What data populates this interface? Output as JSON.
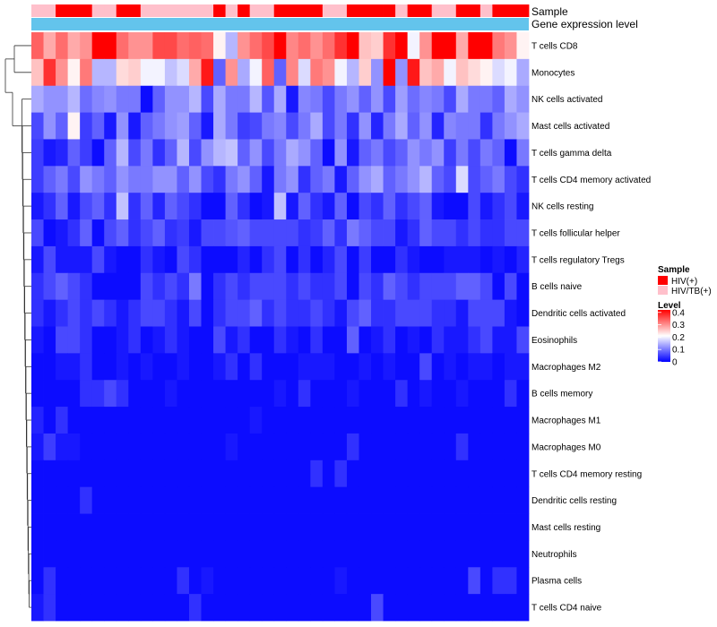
{
  "chart_data": {
    "type": "heatmap",
    "title": "",
    "annotation_tracks": [
      {
        "name": "Sample",
        "type": "categorical"
      },
      {
        "name": "Gene expression level",
        "type": "continuous"
      }
    ],
    "sample_groups": [
      1,
      1,
      0,
      0,
      0,
      1,
      1,
      0,
      0,
      1,
      1,
      1,
      1,
      1,
      1,
      0,
      1,
      0,
      1,
      1,
      0,
      0,
      0,
      0,
      1,
      1,
      0,
      0,
      0,
      0,
      1,
      0,
      0,
      1,
      1,
      0,
      0,
      1,
      0,
      0,
      0
    ],
    "rows": [
      "T cells CD8",
      "Monocytes",
      "NK cells activated",
      "Mast cells activated",
      "T cells gamma delta",
      "T cells CD4 memory activated",
      "NK cells resting",
      "T cells follicular helper",
      "T cells regulatory  Tregs",
      "B cells naive",
      "Dendritic cells activated",
      "Eosinophils",
      "Macrophages M2",
      "B cells memory",
      "Macrophages M1",
      "Macrophages M0",
      "T cells CD4 memory resting",
      "Dendritic cells resting",
      "Mast cells resting",
      "Neutrophils",
      "Plasma cells",
      "T cells CD4 naive"
    ],
    "values": [
      [
        0.34,
        0.28,
        0.33,
        0.28,
        0.3,
        0.42,
        0.42,
        0.33,
        0.3,
        0.3,
        0.36,
        0.36,
        0.33,
        0.34,
        0.33,
        0.22,
        0.15,
        0.3,
        0.33,
        0.36,
        0.42,
        0.31,
        0.33,
        0.3,
        0.33,
        0.38,
        0.42,
        0.26,
        0.25,
        0.38,
        0.42,
        0.2,
        0.3,
        0.42,
        0.42,
        0.28,
        0.42,
        0.42,
        0.32,
        0.3,
        0.22
      ],
      [
        0.26,
        0.38,
        0.3,
        0.22,
        0.32,
        0.15,
        0.15,
        0.24,
        0.25,
        0.2,
        0.2,
        0.16,
        0.18,
        0.28,
        0.4,
        0.08,
        0.3,
        0.14,
        0.2,
        0.34,
        0.08,
        0.31,
        0.18,
        0.32,
        0.3,
        0.2,
        0.15,
        0.25,
        0.12,
        0.42,
        0.12,
        0.4,
        0.26,
        0.28,
        0.2,
        0.26,
        0.24,
        0.22,
        0.18,
        0.2,
        0.14
      ],
      [
        0.14,
        0.12,
        0.12,
        0.15,
        0.09,
        0.11,
        0.12,
        0.1,
        0.1,
        0.01,
        0.08,
        0.12,
        0.12,
        0.15,
        0.06,
        0.14,
        0.1,
        0.1,
        0.15,
        0.07,
        0.14,
        0.02,
        0.11,
        0.1,
        0.06,
        0.1,
        0.12,
        0.08,
        0.12,
        0.06,
        0.13,
        0.09,
        0.11,
        0.1,
        0.06,
        0.14,
        0.1,
        0.1,
        0.08,
        0.14,
        0.12
      ],
      [
        0.06,
        0.12,
        0.08,
        0.22,
        0.05,
        0.08,
        0.02,
        0.12,
        0.02,
        0.08,
        0.1,
        0.12,
        0.13,
        0.08,
        0.02,
        0.14,
        0.1,
        0.05,
        0.06,
        0.1,
        0.11,
        0.06,
        0.1,
        0.14,
        0.06,
        0.1,
        0.04,
        0.12,
        0.03,
        0.1,
        0.14,
        0.08,
        0.12,
        0.03,
        0.11,
        0.1,
        0.1,
        0.04,
        0.1,
        0.12,
        0.14
      ],
      [
        0.05,
        0.02,
        0.03,
        0.08,
        0.05,
        0.01,
        0.08,
        0.15,
        0.06,
        0.1,
        0.04,
        0.08,
        0.15,
        0.06,
        0.12,
        0.15,
        0.16,
        0.08,
        0.12,
        0.06,
        0.1,
        0.14,
        0.12,
        0.08,
        0.01,
        0.12,
        0.02,
        0.08,
        0.1,
        0.06,
        0.08,
        0.12,
        0.1,
        0.12,
        0.05,
        0.1,
        0.06,
        0.1,
        0.08,
        0.01,
        0.1
      ],
      [
        0.05,
        0.08,
        0.1,
        0.06,
        0.12,
        0.1,
        0.08,
        0.12,
        0.1,
        0.1,
        0.12,
        0.12,
        0.08,
        0.12,
        0.06,
        0.04,
        0.1,
        0.12,
        0.08,
        0.02,
        0.1,
        0.12,
        0.04,
        0.08,
        0.1,
        0.02,
        0.08,
        0.12,
        0.14,
        0.08,
        0.1,
        0.12,
        0.15,
        0.08,
        0.06,
        0.18,
        0.06,
        0.08,
        0.1,
        0.06,
        0.04
      ],
      [
        0.02,
        0.04,
        0.08,
        0.02,
        0.06,
        0.08,
        0.04,
        0.16,
        0.04,
        0.08,
        0.03,
        0.08,
        0.06,
        0.04,
        0.01,
        0.01,
        0.08,
        0.04,
        0.01,
        0.02,
        0.16,
        0.02,
        0.08,
        0.04,
        0.02,
        0.08,
        0.01,
        0.06,
        0.04,
        0.08,
        0.04,
        0.06,
        0.08,
        0.02,
        0.01,
        0.01,
        0.06,
        0.02,
        0.04,
        0.06,
        0.02
      ],
      [
        0.06,
        0.01,
        0.02,
        0.04,
        0.08,
        0.01,
        0.06,
        0.08,
        0.04,
        0.06,
        0.08,
        0.04,
        0.05,
        0.02,
        0.06,
        0.06,
        0.07,
        0.08,
        0.06,
        0.06,
        0.06,
        0.06,
        0.04,
        0.05,
        0.08,
        0.04,
        0.1,
        0.08,
        0.06,
        0.06,
        0.02,
        0.04,
        0.08,
        0.06,
        0.06,
        0.04,
        0.06,
        0.04,
        0.04,
        0.06,
        0.06
      ],
      [
        0.02,
        0.06,
        0.02,
        0.02,
        0.02,
        0.06,
        0.02,
        0.01,
        0.01,
        0.04,
        0.02,
        0.01,
        0.06,
        0.04,
        0.01,
        0.01,
        0.01,
        0.03,
        0.01,
        0.04,
        0.06,
        0.01,
        0.04,
        0.01,
        0.03,
        0.06,
        0.01,
        0.05,
        0.01,
        0.01,
        0.04,
        0.02,
        0.01,
        0.01,
        0.02,
        0.02,
        0.02,
        0.01,
        0.02,
        0.01,
        0.03
      ],
      [
        0.04,
        0.06,
        0.08,
        0.06,
        0.04,
        0.01,
        0.01,
        0.01,
        0.01,
        0.06,
        0.04,
        0.06,
        0.04,
        0.1,
        0.01,
        0.04,
        0.06,
        0.04,
        0.06,
        0.06,
        0.06,
        0.04,
        0.06,
        0.04,
        0.04,
        0.06,
        0.01,
        0.06,
        0.04,
        0.08,
        0.06,
        0.04,
        0.06,
        0.06,
        0.06,
        0.08,
        0.08,
        0.06,
        0.01,
        0.06,
        0.01
      ],
      [
        0.04,
        0.02,
        0.04,
        0.06,
        0.04,
        0.06,
        0.04,
        0.02,
        0.04,
        0.06,
        0.06,
        0.04,
        0.02,
        0.06,
        0.01,
        0.04,
        0.06,
        0.06,
        0.08,
        0.04,
        0.06,
        0.04,
        0.04,
        0.06,
        0.04,
        0.02,
        0.06,
        0.08,
        0.04,
        0.04,
        0.06,
        0.06,
        0.06,
        0.04,
        0.04,
        0.02,
        0.06,
        0.06,
        0.06,
        0.02,
        0.01
      ],
      [
        0.02,
        0.01,
        0.06,
        0.06,
        0.04,
        0.01,
        0.01,
        0.02,
        0.04,
        0.01,
        0.02,
        0.04,
        0.02,
        0.01,
        0.01,
        0.06,
        0.02,
        0.04,
        0.01,
        0.01,
        0.04,
        0.02,
        0.01,
        0.04,
        0.01,
        0.01,
        0.08,
        0.01,
        0.02,
        0.04,
        0.01,
        0.02,
        0.01,
        0.04,
        0.02,
        0.02,
        0.04,
        0.06,
        0.02,
        0.02,
        0.06
      ],
      [
        0.01,
        0.01,
        0.02,
        0.02,
        0.04,
        0.01,
        0.01,
        0.02,
        0.01,
        0.02,
        0.01,
        0.01,
        0.02,
        0.01,
        0.01,
        0.02,
        0.04,
        0.01,
        0.04,
        0.01,
        0.01,
        0.01,
        0.02,
        0.02,
        0.02,
        0.01,
        0.01,
        0.02,
        0.01,
        0.02,
        0.01,
        0.01,
        0.06,
        0.01,
        0.02,
        0.01,
        0.02,
        0.02,
        0.01,
        0.02,
        0.02
      ],
      [
        0.01,
        0.01,
        0.01,
        0.01,
        0.04,
        0.04,
        0.06,
        0.04,
        0.01,
        0.01,
        0.01,
        0.02,
        0.01,
        0.01,
        0.01,
        0.01,
        0.01,
        0.01,
        0.01,
        0.01,
        0.02,
        0.01,
        0.04,
        0.01,
        0.01,
        0.01,
        0.02,
        0.01,
        0.01,
        0.01,
        0.04,
        0.01,
        0.02,
        0.01,
        0.01,
        0.02,
        0.01,
        0.01,
        0.01,
        0.04,
        0.01
      ],
      [
        0.03,
        0.01,
        0.04,
        0.01,
        0.01,
        0.01,
        0.01,
        0.01,
        0.01,
        0.01,
        0.01,
        0.01,
        0.01,
        0.01,
        0.01,
        0.01,
        0.01,
        0.01,
        0.02,
        0.01,
        0.01,
        0.01,
        0.01,
        0.01,
        0.01,
        0.01,
        0.01,
        0.01,
        0.01,
        0.01,
        0.01,
        0.01,
        0.01,
        0.01,
        0.01,
        0.01,
        0.01,
        0.01,
        0.01,
        0.01,
        0.01
      ],
      [
        0.02,
        0.05,
        0.02,
        0.02,
        0.01,
        0.01,
        0.01,
        0.01,
        0.01,
        0.01,
        0.01,
        0.01,
        0.01,
        0.01,
        0.01,
        0.01,
        0.02,
        0.01,
        0.01,
        0.01,
        0.01,
        0.01,
        0.01,
        0.01,
        0.01,
        0.01,
        0.04,
        0.01,
        0.01,
        0.01,
        0.01,
        0.01,
        0.01,
        0.01,
        0.01,
        0.04,
        0.01,
        0.01,
        0.01,
        0.01,
        0.01
      ],
      [
        0.01,
        0.01,
        0.01,
        0.01,
        0.01,
        0.01,
        0.01,
        0.01,
        0.01,
        0.01,
        0.01,
        0.01,
        0.01,
        0.01,
        0.01,
        0.01,
        0.01,
        0.01,
        0.01,
        0.01,
        0.01,
        0.01,
        0.01,
        0.04,
        0.01,
        0.04,
        0.01,
        0.01,
        0.01,
        0.01,
        0.01,
        0.01,
        0.01,
        0.01,
        0.01,
        0.01,
        0.01,
        0.01,
        0.01,
        0.01,
        0.01
      ],
      [
        0.01,
        0.01,
        0.01,
        0.01,
        0.04,
        0.01,
        0.01,
        0.01,
        0.01,
        0.01,
        0.01,
        0.01,
        0.01,
        0.01,
        0.01,
        0.01,
        0.01,
        0.01,
        0.01,
        0.01,
        0.01,
        0.01,
        0.01,
        0.01,
        0.01,
        0.01,
        0.01,
        0.01,
        0.01,
        0.01,
        0.01,
        0.01,
        0.01,
        0.01,
        0.01,
        0.01,
        0.01,
        0.01,
        0.01,
        0.01,
        0.01
      ],
      [
        0.01,
        0.01,
        0.01,
        0.01,
        0.01,
        0.01,
        0.01,
        0.01,
        0.01,
        0.01,
        0.01,
        0.01,
        0.01,
        0.01,
        0.01,
        0.01,
        0.01,
        0.01,
        0.01,
        0.01,
        0.01,
        0.01,
        0.01,
        0.01,
        0.01,
        0.01,
        0.01,
        0.01,
        0.01,
        0.01,
        0.01,
        0.01,
        0.01,
        0.01,
        0.01,
        0.01,
        0.01,
        0.01,
        0.01,
        0.01,
        0.01
      ],
      [
        0.01,
        0.01,
        0.01,
        0.01,
        0.01,
        0.01,
        0.01,
        0.01,
        0.01,
        0.01,
        0.01,
        0.01,
        0.01,
        0.01,
        0.01,
        0.01,
        0.01,
        0.01,
        0.01,
        0.01,
        0.01,
        0.01,
        0.01,
        0.01,
        0.01,
        0.01,
        0.01,
        0.01,
        0.01,
        0.01,
        0.01,
        0.01,
        0.01,
        0.01,
        0.01,
        0.01,
        0.01,
        0.01,
        0.01,
        0.01,
        0.01
      ],
      [
        0.01,
        0.04,
        0.01,
        0.01,
        0.01,
        0.01,
        0.01,
        0.01,
        0.01,
        0.01,
        0.01,
        0.01,
        0.04,
        0.01,
        0.02,
        0.01,
        0.01,
        0.01,
        0.01,
        0.01,
        0.01,
        0.01,
        0.01,
        0.01,
        0.01,
        0.02,
        0.01,
        0.01,
        0.01,
        0.01,
        0.01,
        0.01,
        0.01,
        0.01,
        0.01,
        0.01,
        0.06,
        0.01,
        0.04,
        0.04,
        0.01
      ],
      [
        0.02,
        0.04,
        0.01,
        0.01,
        0.01,
        0.01,
        0.01,
        0.01,
        0.01,
        0.01,
        0.01,
        0.01,
        0.01,
        0.04,
        0.01,
        0.01,
        0.01,
        0.01,
        0.01,
        0.01,
        0.01,
        0.01,
        0.01,
        0.01,
        0.01,
        0.01,
        0.01,
        0.01,
        0.06,
        0.01,
        0.01,
        0.01,
        0.01,
        0.01,
        0.01,
        0.01,
        0.01,
        0.01,
        0.01,
        0.01,
        0.01
      ]
    ],
    "legend": {
      "sample_title": "Sample",
      "sample_items": [
        {
          "label": "HIV(+)",
          "color": "#ff0000"
        },
        {
          "label": "HIV/TB(+)",
          "color": "#ffc0cb"
        }
      ],
      "level_title": "Level",
      "level_ticks": [
        "0.4",
        "0.3",
        "0.2",
        "0.1",
        "0"
      ],
      "level_tick_values": [
        0.4,
        0.3,
        0.2,
        0.1,
        0
      ],
      "level_range": [
        0,
        0.42
      ],
      "level_colors": [
        "#0000ff",
        "#ffffff",
        "#ff0000"
      ]
    },
    "expression_track_color": "#63c4ec",
    "dendrogram": "rows, left side"
  }
}
